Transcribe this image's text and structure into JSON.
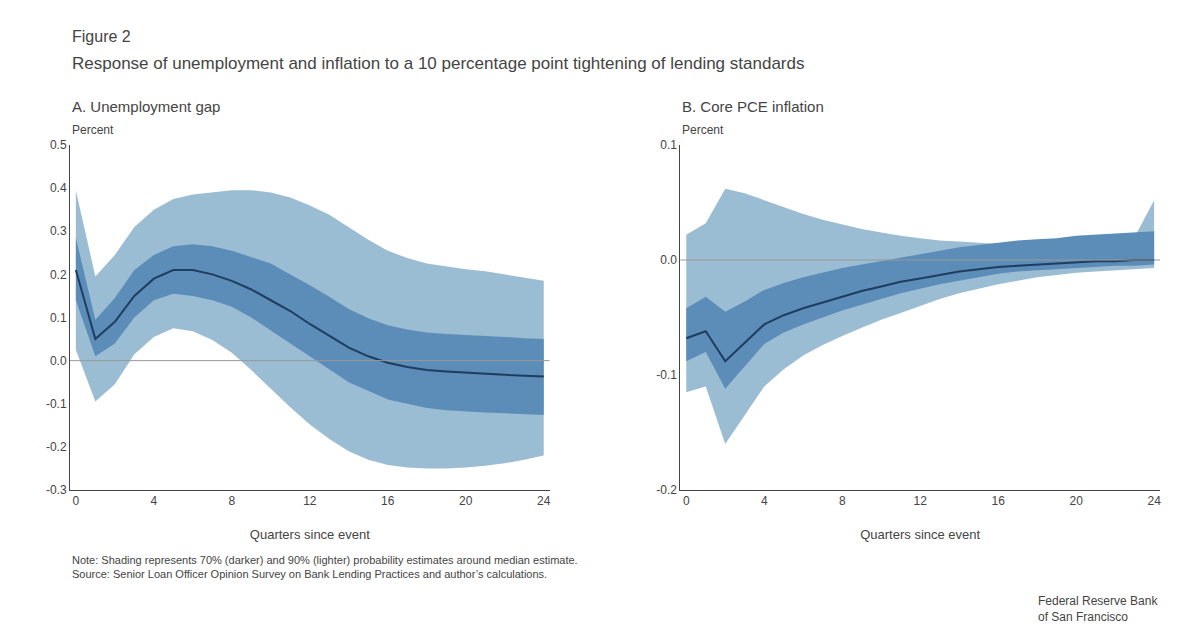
{
  "title": "Response of unemployment and inflation to a 10 percentage point tightening of lending standards",
  "annotations": [
    "Figure 2",
    "Note: Shading represents 70% (darker) and 90% (lighter) probability estimates around median estimate.\nSource: Senior Loan Officer Opinion Survey on Bank Lending Practices and author’s calculations.",
    "Federal Reserve Bank\nof San Francisco"
  ],
  "chart_data": [
    {
      "type": "line",
      "title": "A. Unemployment gap",
      "xlabel": "Quarters since event",
      "ylabel": "Percent",
      "x": [
        0,
        1,
        2,
        3,
        4,
        5,
        6,
        7,
        8,
        9,
        10,
        11,
        12,
        13,
        14,
        15,
        16,
        17,
        18,
        19,
        20,
        21,
        22,
        23,
        24
      ],
      "series": [
        {
          "type": "band",
          "color": "#9bbdd4",
          "lower": [
            0.025,
            -0.095,
            -0.055,
            0.015,
            0.055,
            0.075,
            0.068,
            0.048,
            0.018,
            -0.022,
            -0.065,
            -0.108,
            -0.148,
            -0.182,
            -0.21,
            -0.23,
            -0.242,
            -0.248,
            -0.25,
            -0.25,
            -0.248,
            -0.244,
            -0.238,
            -0.23,
            -0.22
          ],
          "upper": [
            0.395,
            0.195,
            0.245,
            0.31,
            0.35,
            0.375,
            0.385,
            0.39,
            0.395,
            0.395,
            0.39,
            0.378,
            0.36,
            0.338,
            0.31,
            0.28,
            0.255,
            0.238,
            0.225,
            0.218,
            0.212,
            0.207,
            0.2,
            0.192,
            0.185
          ]
        },
        {
          "type": "band",
          "color": "#5b8db8",
          "lower": [
            0.14,
            0.01,
            0.04,
            0.1,
            0.14,
            0.155,
            0.15,
            0.14,
            0.125,
            0.1,
            0.07,
            0.04,
            0.01,
            -0.02,
            -0.05,
            -0.07,
            -0.09,
            -0.1,
            -0.11,
            -0.115,
            -0.118,
            -0.12,
            -0.122,
            -0.124,
            -0.126
          ],
          "upper": [
            0.285,
            0.095,
            0.145,
            0.21,
            0.245,
            0.265,
            0.27,
            0.265,
            0.255,
            0.24,
            0.225,
            0.2,
            0.175,
            0.148,
            0.12,
            0.098,
            0.082,
            0.072,
            0.065,
            0.062,
            0.06,
            0.058,
            0.055,
            0.052,
            0.05
          ]
        },
        {
          "type": "line",
          "color": "#1e3d5f",
          "values": [
            0.21,
            0.05,
            0.09,
            0.15,
            0.19,
            0.21,
            0.21,
            0.2,
            0.185,
            0.165,
            0.14,
            0.115,
            0.085,
            0.058,
            0.03,
            0.01,
            -0.005,
            -0.015,
            -0.022,
            -0.025,
            -0.028,
            -0.03,
            -0.033,
            -0.035,
            -0.037
          ]
        }
      ],
      "reference_line": {
        "y": 0,
        "color": "#999999"
      },
      "xlim": [
        -0.3,
        24.3
      ],
      "xticks": [
        0,
        4,
        8,
        12,
        16,
        20,
        24
      ],
      "ylim": [
        -0.3,
        0.5
      ],
      "yticks": [
        -0.3,
        -0.2,
        -0.1,
        {
          "value": 0.0,
          "label": "0.0"
        },
        0.1,
        0.2,
        0.3,
        0.4,
        0.5
      ],
      "grid": false
    },
    {
      "type": "line",
      "title": "B. Core PCE inflation",
      "xlabel": "Quarters since event",
      "ylabel": "Percent",
      "x": [
        0,
        1,
        2,
        3,
        4,
        5,
        6,
        7,
        8,
        9,
        10,
        11,
        12,
        13,
        14,
        15,
        16,
        17,
        18,
        19,
        20,
        21,
        22,
        23,
        24
      ],
      "series": [
        {
          "type": "band",
          "color": "#9bbdd4",
          "lower": [
            -0.115,
            -0.11,
            -0.16,
            -0.135,
            -0.11,
            -0.095,
            -0.083,
            -0.074,
            -0.066,
            -0.059,
            -0.052,
            -0.046,
            -0.04,
            -0.034,
            -0.029,
            -0.025,
            -0.021,
            -0.018,
            -0.015,
            -0.013,
            -0.011,
            -0.01,
            -0.009,
            -0.008,
            -0.007
          ],
          "upper": [
            0.022,
            0.032,
            0.062,
            0.058,
            0.052,
            0.046,
            0.04,
            0.035,
            0.031,
            0.027,
            0.024,
            0.021,
            0.019,
            0.017,
            0.016,
            0.015,
            0.014,
            0.014,
            0.014,
            0.015,
            0.016,
            0.017,
            0.018,
            0.02,
            0.052
          ]
        },
        {
          "type": "band",
          "color": "#5b8db8",
          "lower": [
            -0.088,
            -0.08,
            -0.112,
            -0.092,
            -0.073,
            -0.063,
            -0.056,
            -0.05,
            -0.044,
            -0.039,
            -0.034,
            -0.029,
            -0.025,
            -0.021,
            -0.018,
            -0.015,
            -0.012,
            -0.01,
            -0.009,
            -0.008,
            -0.007,
            -0.006,
            -0.005,
            -0.005,
            -0.004
          ],
          "upper": [
            -0.042,
            -0.032,
            -0.045,
            -0.036,
            -0.026,
            -0.02,
            -0.015,
            -0.011,
            -0.007,
            -0.004,
            -0.001,
            0.002,
            0.005,
            0.008,
            0.011,
            0.013,
            0.015,
            0.017,
            0.018,
            0.019,
            0.021,
            0.022,
            0.023,
            0.024,
            0.025
          ]
        },
        {
          "type": "line",
          "color": "#1e3d5f",
          "values": [
            -0.068,
            -0.062,
            -0.088,
            -0.072,
            -0.056,
            -0.048,
            -0.042,
            -0.037,
            -0.032,
            -0.027,
            -0.023,
            -0.019,
            -0.016,
            -0.013,
            -0.01,
            -0.008,
            -0.006,
            -0.005,
            -0.004,
            -0.003,
            -0.002,
            -0.001,
            -0.001,
            0.0,
            0.0
          ]
        }
      ],
      "reference_line": {
        "y": 0,
        "color": "#999999"
      },
      "xlim": [
        -0.3,
        24.3
      ],
      "xticks": [
        0,
        4,
        8,
        12,
        16,
        20,
        24
      ],
      "ylim": [
        -0.2,
        0.1
      ],
      "yticks": [
        -0.2,
        -0.1,
        {
          "value": 0.0,
          "label": "0.0"
        },
        0.1
      ],
      "grid": false
    }
  ]
}
